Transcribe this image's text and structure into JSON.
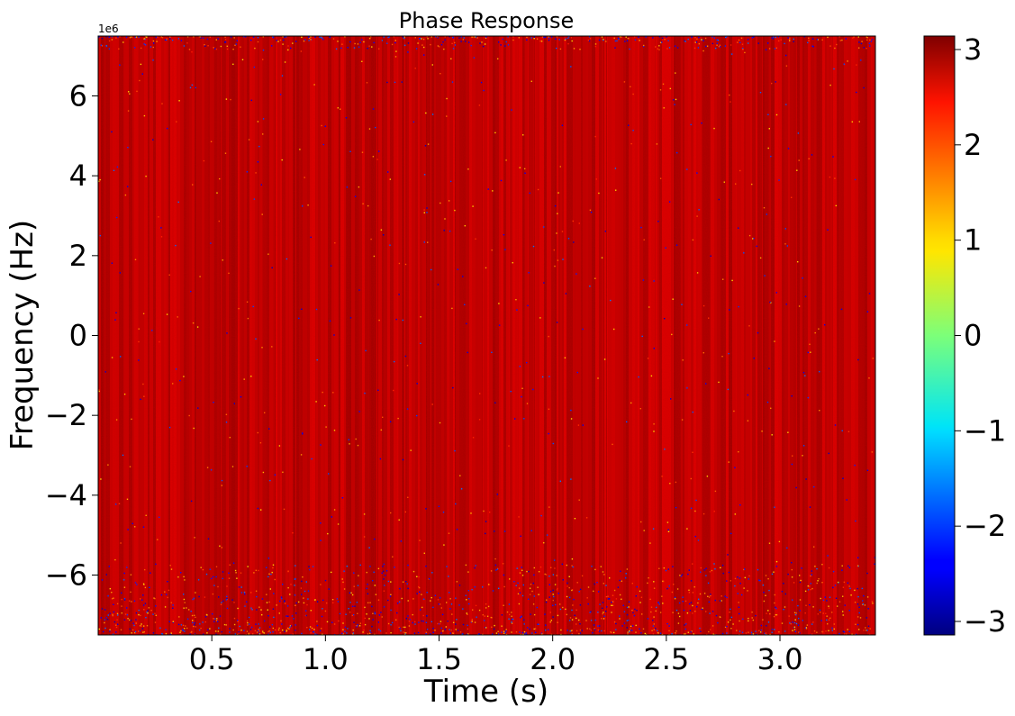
{
  "chart_data": {
    "type": "heatmap",
    "title": "Phase Response",
    "xlabel": "Time (s)",
    "ylabel": "Frequency (Hz)",
    "y_offset_text": "1e6",
    "xlim": [
      0.0,
      3.42
    ],
    "ylim": [
      -7.5,
      7.5
    ],
    "x_ticks": [
      0.5,
      1.0,
      1.5,
      2.0,
      2.5,
      3.0
    ],
    "x_tick_labels": [
      "0.5",
      "1.0",
      "1.5",
      "2.0",
      "2.5",
      "3.0"
    ],
    "y_ticks": [
      -6,
      -4,
      -2,
      0,
      2,
      4,
      6
    ],
    "y_tick_labels": [
      "−6",
      "−4",
      "−2",
      "0",
      "2",
      "4",
      "6"
    ],
    "colormap": "jet",
    "colorbar": {
      "vmin": -3.14159,
      "vmax": 3.14159,
      "ticks": [
        -3,
        -2,
        -1,
        0,
        1,
        2,
        3
      ],
      "tick_labels": [
        "−3",
        "−2",
        "−1",
        "0",
        "1",
        "2",
        "3"
      ]
    },
    "dominant_value": 2.75,
    "grid": false
  }
}
